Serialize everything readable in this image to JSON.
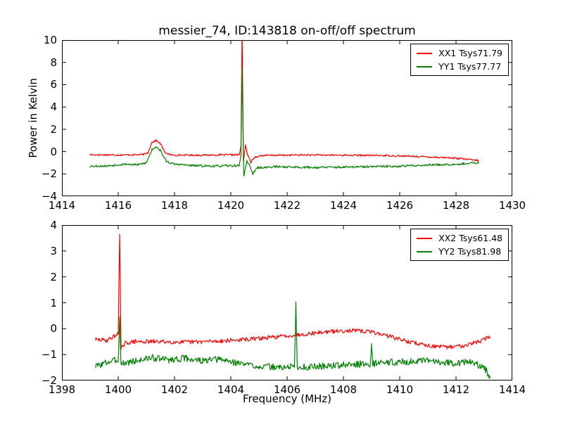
{
  "figure": {
    "title": "messier_74, ID:143818 on-off/off spectrum",
    "xlabel": "Frequency (MHz)",
    "ylabel": "Power in Kelvin",
    "background": "#ffffff",
    "axis_color": "#000000"
  },
  "chart_data": [
    {
      "type": "line",
      "title": "",
      "xlabel": "",
      "ylabel": "Power in Kelvin",
      "xlim": [
        1414,
        1430
      ],
      "ylim": [
        -4,
        10
      ],
      "grid": false,
      "legend_position": "upper right",
      "xticks": {
        "values": [
          1414,
          1416,
          1418,
          1420,
          1422,
          1424,
          1426,
          1428,
          1430
        ],
        "labels": [
          "1414",
          "1416",
          "1418",
          "1420",
          "1422",
          "1424",
          "1426",
          "1428",
          "1430"
        ]
      },
      "yticks": {
        "values": [
          -4,
          -2,
          0,
          2,
          4,
          6,
          8,
          10
        ],
        "labels": [
          "−4",
          "−2",
          "0",
          "2",
          "4",
          "6",
          "8",
          "10"
        ]
      },
      "legend": [
        {
          "label": "XX1 Tsys71.79",
          "color": "#ff0000"
        },
        {
          "label": "YY1 Tsys77.77",
          "color": "#008000"
        }
      ],
      "series": [
        {
          "name": "XX1",
          "color": "#ff0000",
          "noise_amplitude": 0.08,
          "seed": 17,
          "anchors": [
            [
              1415.0,
              -0.28
            ],
            [
              1416.0,
              -0.3
            ],
            [
              1416.9,
              -0.27
            ],
            [
              1417.05,
              -0.1
            ],
            [
              1417.2,
              0.85
            ],
            [
              1417.35,
              1.0
            ],
            [
              1417.5,
              0.7
            ],
            [
              1417.65,
              -0.05
            ],
            [
              1417.85,
              -0.3
            ],
            [
              1418.6,
              -0.32
            ],
            [
              1419.6,
              -0.3
            ],
            [
              1420.3,
              -0.28
            ],
            [
              1420.36,
              0.5
            ],
            [
              1420.4,
              11.0
            ],
            [
              1420.45,
              -0.9
            ],
            [
              1420.52,
              0.55
            ],
            [
              1420.6,
              -0.3
            ],
            [
              1420.7,
              -0.95
            ],
            [
              1420.85,
              -0.5
            ],
            [
              1421.1,
              -0.35
            ],
            [
              1422.5,
              -0.3
            ],
            [
              1424.0,
              -0.32
            ],
            [
              1425.5,
              -0.35
            ],
            [
              1426.8,
              -0.45
            ],
            [
              1427.8,
              -0.55
            ],
            [
              1428.8,
              -0.8
            ]
          ]
        },
        {
          "name": "YY1",
          "color": "#008000",
          "noise_amplitude": 0.1,
          "seed": 53,
          "anchors": [
            [
              1415.0,
              -1.3
            ],
            [
              1415.6,
              -1.28
            ],
            [
              1416.2,
              -1.12
            ],
            [
              1416.7,
              -1.18
            ],
            [
              1417.0,
              -1.0
            ],
            [
              1417.2,
              0.2
            ],
            [
              1417.35,
              0.45
            ],
            [
              1417.5,
              0.1
            ],
            [
              1417.7,
              -0.85
            ],
            [
              1417.95,
              -1.1
            ],
            [
              1418.6,
              -1.25
            ],
            [
              1419.5,
              -1.3
            ],
            [
              1420.3,
              -1.25
            ],
            [
              1420.36,
              -0.3
            ],
            [
              1420.4,
              7.5
            ],
            [
              1420.46,
              -2.25
            ],
            [
              1420.57,
              -0.85
            ],
            [
              1420.64,
              -1.05
            ],
            [
              1420.78,
              -2.0
            ],
            [
              1420.95,
              -1.45
            ],
            [
              1421.6,
              -1.35
            ],
            [
              1423.0,
              -1.42
            ],
            [
              1424.5,
              -1.38
            ],
            [
              1426.0,
              -1.3
            ],
            [
              1427.2,
              -1.18
            ],
            [
              1428.2,
              -1.1
            ],
            [
              1428.8,
              -1.0
            ]
          ]
        }
      ]
    },
    {
      "type": "line",
      "title": "",
      "xlabel": "Frequency (MHz)",
      "ylabel": "",
      "xlim": [
        1398,
        1414
      ],
      "ylim": [
        -2,
        4
      ],
      "grid": false,
      "legend_position": "upper right",
      "xticks": {
        "values": [
          1398,
          1400,
          1402,
          1404,
          1406,
          1408,
          1410,
          1412,
          1414
        ],
        "labels": [
          "1398",
          "1400",
          "1402",
          "1404",
          "1406",
          "1408",
          "1410",
          "1412",
          "1414"
        ]
      },
      "yticks": {
        "values": [
          -2,
          -1,
          0,
          1,
          2,
          3,
          4
        ],
        "labels": [
          "−2",
          "−1",
          "0",
          "1",
          "2",
          "3",
          "4"
        ]
      },
      "legend": [
        {
          "label": "XX2 Tsys61.48",
          "color": "#ff0000"
        },
        {
          "label": "YY2 Tsys81.98",
          "color": "#008000"
        }
      ],
      "series": [
        {
          "name": "XX2",
          "color": "#ff0000",
          "noise_amplitude": 0.08,
          "seed": 29,
          "anchors": [
            [
              1399.2,
              -0.42
            ],
            [
              1399.6,
              -0.45
            ],
            [
              1400.0,
              -0.2
            ],
            [
              1400.05,
              3.72
            ],
            [
              1400.1,
              -0.8
            ],
            [
              1400.25,
              -0.55
            ],
            [
              1400.6,
              -0.5
            ],
            [
              1401.5,
              -0.5
            ],
            [
              1402.5,
              -0.52
            ],
            [
              1403.5,
              -0.48
            ],
            [
              1404.5,
              -0.42
            ],
            [
              1405.5,
              -0.33
            ],
            [
              1406.5,
              -0.22
            ],
            [
              1407.4,
              -0.12
            ],
            [
              1408.2,
              -0.07
            ],
            [
              1409.0,
              -0.12
            ],
            [
              1409.6,
              -0.28
            ],
            [
              1410.3,
              -0.5
            ],
            [
              1411.0,
              -0.65
            ],
            [
              1411.6,
              -0.72
            ],
            [
              1412.2,
              -0.66
            ],
            [
              1412.8,
              -0.5
            ],
            [
              1413.2,
              -0.32
            ]
          ]
        },
        {
          "name": "YY2",
          "color": "#008000",
          "noise_amplitude": 0.13,
          "seed": 3,
          "anchors": [
            [
              1399.2,
              -1.45
            ],
            [
              1399.6,
              -1.3
            ],
            [
              1400.0,
              -1.2
            ],
            [
              1400.05,
              0.42
            ],
            [
              1400.1,
              -1.35
            ],
            [
              1400.6,
              -1.25
            ],
            [
              1401.2,
              -1.12
            ],
            [
              1401.8,
              -1.2
            ],
            [
              1402.4,
              -1.14
            ],
            [
              1403.0,
              -1.25
            ],
            [
              1403.6,
              -1.18
            ],
            [
              1404.2,
              -1.32
            ],
            [
              1405.0,
              -1.45
            ],
            [
              1405.8,
              -1.5
            ],
            [
              1406.26,
              -1.45
            ],
            [
              1406.31,
              0.93
            ],
            [
              1406.36,
              -1.5
            ],
            [
              1407.2,
              -1.45
            ],
            [
              1408.0,
              -1.4
            ],
            [
              1408.96,
              -1.35
            ],
            [
              1409.0,
              -0.67
            ],
            [
              1409.04,
              -1.35
            ],
            [
              1409.6,
              -1.3
            ],
            [
              1410.4,
              -1.27
            ],
            [
              1411.2,
              -1.24
            ],
            [
              1411.9,
              -1.33
            ],
            [
              1412.5,
              -1.28
            ],
            [
              1413.0,
              -1.5
            ],
            [
              1413.2,
              -1.85
            ]
          ]
        }
      ]
    }
  ]
}
